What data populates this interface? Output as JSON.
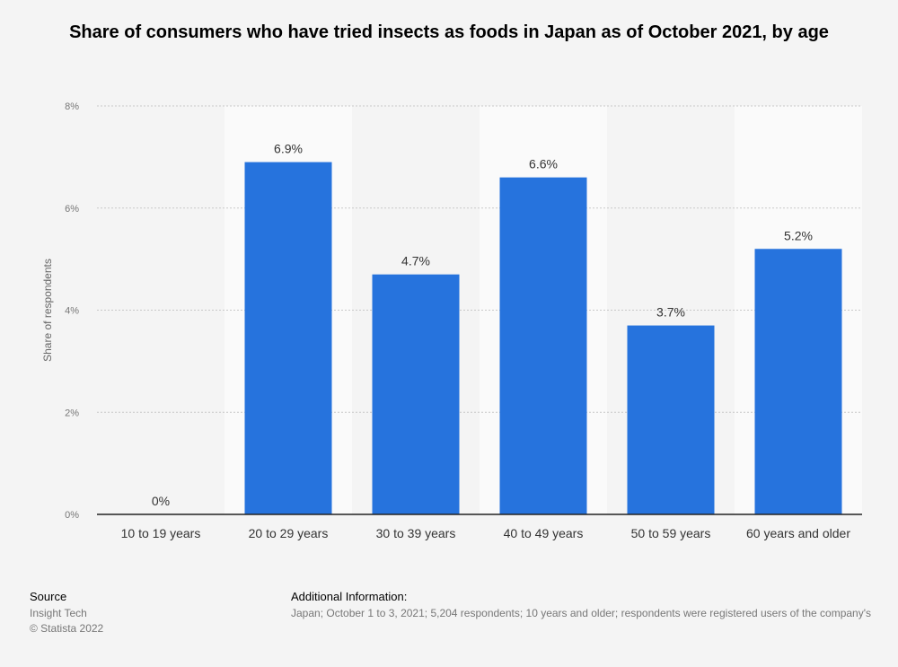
{
  "chart_data": {
    "type": "bar",
    "title": "Share of consumers who have tried insects as foods in Japan as of October 2021, by age",
    "categories": [
      "10 to 19 years",
      "20 to 29 years",
      "30 to 39 years",
      "40 to 49 years",
      "50 to 59 years",
      "60 years and older"
    ],
    "values": [
      0,
      6.9,
      4.7,
      6.6,
      3.7,
      5.2
    ],
    "value_labels": [
      "0%",
      "6.9%",
      "4.7%",
      "6.6%",
      "3.7%",
      "5.2%"
    ],
    "xlabel": "",
    "ylabel": "Share of respondents",
    "ylim": [
      0,
      8
    ],
    "yticks": [
      0,
      2,
      4,
      6,
      8
    ],
    "ytick_labels": [
      "0%",
      "2%",
      "4%",
      "6%",
      "8%"
    ],
    "grid": true,
    "bar_color": "#2673dd"
  },
  "footer": {
    "source_heading": "Source",
    "source_lines": [
      "Insight Tech",
      "© Statista 2022"
    ],
    "additional_heading": "Additional Information:",
    "additional_text": "Japan; October 1 to 3, 2021; 5,204 respondents; 10 years and older; respondents were registered users of the company's"
  }
}
